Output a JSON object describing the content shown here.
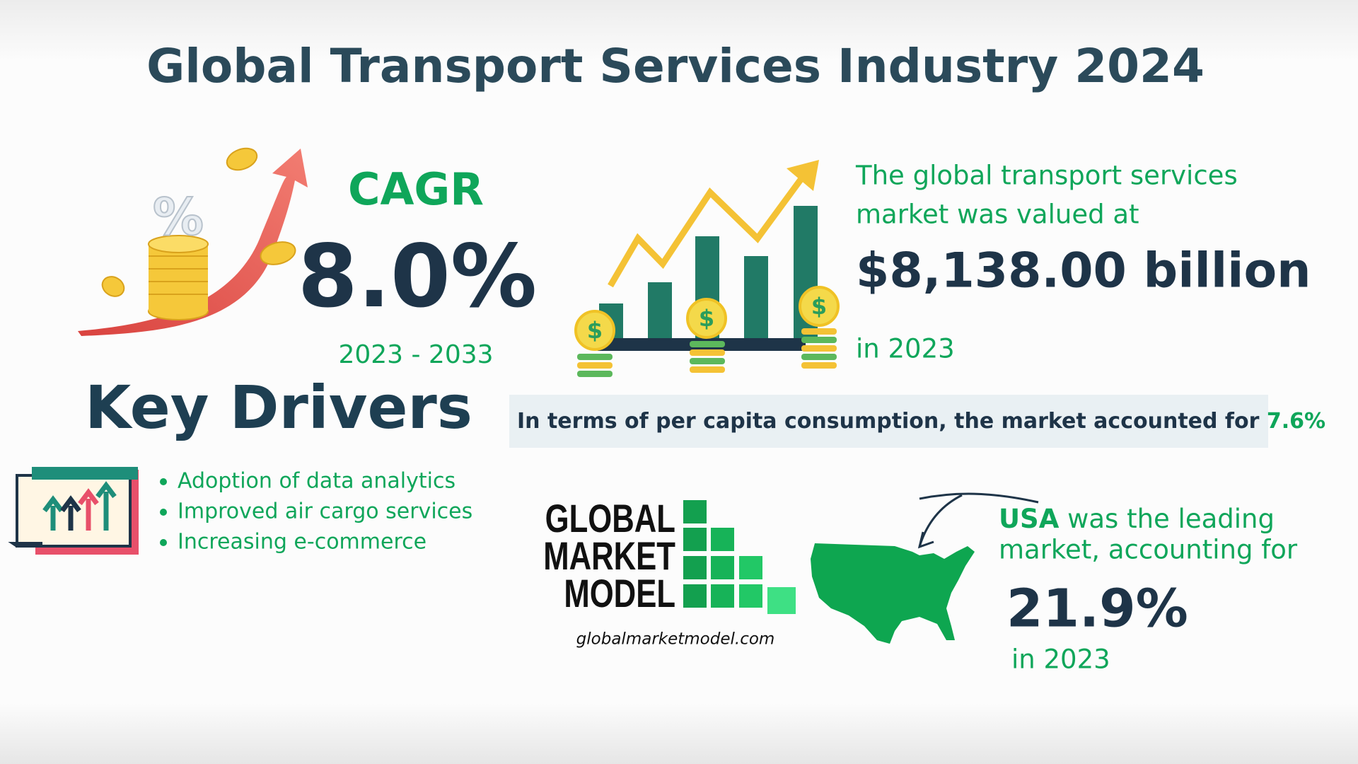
{
  "title": "Global Transport Services Industry 2024",
  "cagr": {
    "label": "CAGR",
    "value": "8.0%",
    "period": "2023 - 2033"
  },
  "market": {
    "intro_line1": "The global transport services",
    "intro_line2": "market was valued at",
    "value": "$8,138.00 billion",
    "year": "in 2023"
  },
  "per_capita": {
    "text": "In terms of per capita consumption, the market accounted for",
    "value": "7.6%"
  },
  "key_drivers": {
    "title": "Key Drivers",
    "items": [
      "Adoption of data analytics",
      "Improved air cargo services",
      "Increasing e-commerce"
    ]
  },
  "logo": {
    "line1": "GLOBAL",
    "line2": "MARKET",
    "line3": "MODEL",
    "url": "globalmarketmodel.com"
  },
  "usa": {
    "country": "USA",
    "text_line1": "was the leading",
    "text_line2": "market, accounting for",
    "value": "21.9%",
    "year": "in 2023"
  }
}
